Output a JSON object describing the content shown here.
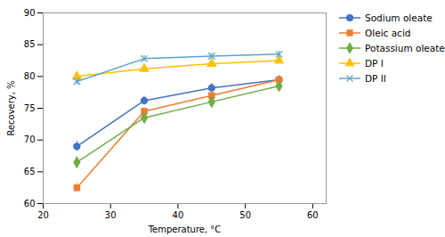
{
  "chart_data": {
    "type": "line",
    "x": [
      25,
      35,
      45,
      55
    ],
    "series": [
      {
        "name": "Sodium oleate",
        "color": "#4472C4",
        "marker": "circle",
        "line_style": "solid",
        "values": [
          69.0,
          76.2,
          78.2,
          79.5
        ],
        "yerr": [
          0.8,
          0.7,
          0.7,
          0.6
        ]
      },
      {
        "name": "Oleic acid",
        "color": "#ED7D31",
        "marker": "square",
        "line_style": "solid",
        "values": [
          62.5,
          74.5,
          77.0,
          79.5
        ],
        "yerr": [
          0.7,
          0.6,
          0.6,
          0.5
        ]
      },
      {
        "name": "Potassium oleate",
        "color": "#70AD47",
        "marker": "diamond",
        "line_style": "solid",
        "values": [
          66.5,
          73.5,
          76.0,
          78.5
        ],
        "yerr": [
          0.8,
          0.6,
          0.6,
          0.5
        ]
      },
      {
        "name": "DP I",
        "color": "#FFC000",
        "marker": "triangle",
        "line_style": "solid",
        "values": [
          80.0,
          81.2,
          82.0,
          82.5
        ],
        "yerr": [
          0.6,
          0.5,
          0.5,
          0.5
        ]
      },
      {
        "name": "DP II",
        "color": "#5BA3C9",
        "marker": "x",
        "line_style": "solid",
        "values": [
          79.2,
          82.8,
          83.2,
          83.5
        ],
        "yerr": [
          0.5,
          0.5,
          0.5,
          0.5
        ]
      }
    ],
    "xlabel": "Temperature, °C",
    "ylabel": "Recovery, %",
    "xlim": [
      20,
      62
    ],
    "ylim": [
      60,
      90
    ],
    "xticks": [
      20,
      30,
      40,
      50,
      60
    ],
    "yticks": [
      60,
      65,
      70,
      75,
      80,
      85,
      90
    ],
    "legend": "right"
  }
}
